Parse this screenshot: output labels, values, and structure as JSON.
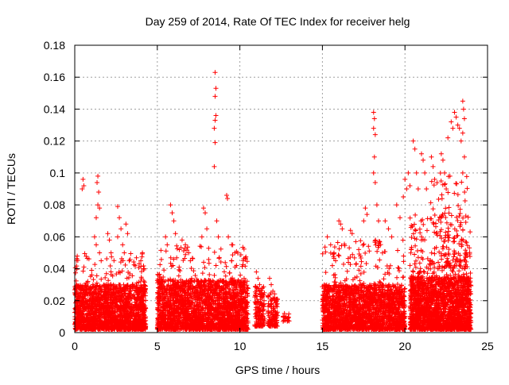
{
  "chart_data": {
    "type": "scatter",
    "title": "Day 259 of 2014, Rate Of TEC Index for receiver helg",
    "xlabel": "GPS time / hours",
    "ylabel": "ROTI / TECUs",
    "xlim": [
      0,
      25
    ],
    "ylim": [
      0,
      0.18
    ],
    "x_ticks": [
      0,
      5,
      10,
      15,
      20,
      25
    ],
    "x_tick_labels": [
      "0",
      "5",
      "10",
      "15",
      "20",
      "25"
    ],
    "y_ticks": [
      0,
      0.02,
      0.04,
      0.06,
      0.08,
      0.1,
      0.12,
      0.14,
      0.16,
      0.18
    ],
    "y_tick_labels": [
      "0",
      "0.02",
      "0.04",
      "0.06",
      "0.08",
      "0.1",
      "0.12",
      "0.14",
      "0.16",
      "0.18"
    ],
    "grid": true,
    "marker": "+",
    "color": "#ff0000",
    "series": [
      {
        "name": "ROTI",
        "points": [
          [
            0.5,
            0.096
          ],
          [
            0.55,
            0.092
          ],
          [
            0.45,
            0.09
          ],
          [
            1.4,
            0.098
          ],
          [
            1.35,
            0.094
          ],
          [
            1.45,
            0.088
          ],
          [
            1.4,
            0.08
          ],
          [
            1.5,
            0.078
          ],
          [
            1.3,
            0.072
          ],
          [
            1.2,
            0.06
          ],
          [
            1.3,
            0.055
          ],
          [
            1.5,
            0.05
          ],
          [
            1.6,
            0.045
          ],
          [
            2.0,
            0.062
          ],
          [
            2.1,
            0.058
          ],
          [
            2.2,
            0.05
          ],
          [
            2.6,
            0.079
          ],
          [
            2.7,
            0.072
          ],
          [
            2.8,
            0.065
          ],
          [
            2.6,
            0.06
          ],
          [
            2.9,
            0.055
          ],
          [
            3.1,
            0.068
          ],
          [
            3.2,
            0.062
          ],
          [
            3.0,
            0.05
          ],
          [
            3.3,
            0.045
          ],
          [
            4.1,
            0.05
          ],
          [
            4.0,
            0.045
          ],
          [
            4.2,
            0.04
          ],
          [
            5.5,
            0.06
          ],
          [
            5.6,
            0.055
          ],
          [
            5.8,
            0.08
          ],
          [
            5.9,
            0.075
          ],
          [
            6.0,
            0.07
          ],
          [
            6.1,
            0.062
          ],
          [
            6.5,
            0.058
          ],
          [
            6.7,
            0.055
          ],
          [
            6.9,
            0.05
          ],
          [
            7.0,
            0.045
          ],
          [
            7.8,
            0.078
          ],
          [
            7.9,
            0.075
          ],
          [
            8.0,
            0.065
          ],
          [
            7.7,
            0.06
          ],
          [
            8.5,
            0.163
          ],
          [
            8.55,
            0.153
          ],
          [
            8.5,
            0.148
          ],
          [
            8.55,
            0.136
          ],
          [
            8.5,
            0.133
          ],
          [
            8.45,
            0.128
          ],
          [
            8.5,
            0.119
          ],
          [
            8.45,
            0.104
          ],
          [
            8.6,
            0.07
          ],
          [
            8.7,
            0.06
          ],
          [
            9.2,
            0.086
          ],
          [
            9.25,
            0.084
          ],
          [
            9.3,
            0.06
          ],
          [
            9.5,
            0.055
          ],
          [
            9.7,
            0.05
          ],
          [
            10.2,
            0.045
          ],
          [
            11.0,
            0.038
          ],
          [
            11.1,
            0.034
          ],
          [
            11.2,
            0.03
          ],
          [
            11.8,
            0.034
          ],
          [
            11.9,
            0.03
          ],
          [
            12.0,
            0.026
          ],
          [
            12.7,
            0.012
          ],
          [
            12.8,
            0.01
          ],
          [
            12.9,
            0.009
          ],
          [
            15.3,
            0.06
          ],
          [
            15.5,
            0.055
          ],
          [
            15.7,
            0.05
          ],
          [
            15.8,
            0.045
          ],
          [
            16.0,
            0.07
          ],
          [
            16.1,
            0.068
          ],
          [
            16.2,
            0.065
          ],
          [
            16.7,
            0.064
          ],
          [
            16.8,
            0.062
          ],
          [
            17.2,
            0.052
          ],
          [
            17.3,
            0.048
          ],
          [
            17.6,
            0.078
          ],
          [
            17.7,
            0.074
          ],
          [
            17.5,
            0.07
          ],
          [
            18.1,
            0.138
          ],
          [
            18.15,
            0.134
          ],
          [
            18.1,
            0.128
          ],
          [
            18.2,
            0.124
          ],
          [
            18.15,
            0.11
          ],
          [
            18.1,
            0.1
          ],
          [
            18.2,
            0.094
          ],
          [
            18.3,
            0.08
          ],
          [
            18.4,
            0.07
          ],
          [
            18.8,
            0.07
          ],
          [
            19.0,
            0.065
          ],
          [
            19.2,
            0.06
          ],
          [
            19.5,
            0.08
          ],
          [
            19.7,
            0.072
          ],
          [
            19.9,
            0.085
          ],
          [
            20.0,
            0.096
          ],
          [
            20.1,
            0.09
          ],
          [
            20.2,
            0.1
          ],
          [
            20.3,
            0.092
          ],
          [
            20.5,
            0.12
          ],
          [
            20.6,
            0.115
          ],
          [
            20.7,
            0.1
          ],
          [
            20.8,
            0.09
          ],
          [
            21.0,
            0.112
          ],
          [
            21.1,
            0.108
          ],
          [
            21.2,
            0.1
          ],
          [
            21.3,
            0.09
          ],
          [
            21.6,
            0.11
          ],
          [
            21.7,
            0.104
          ],
          [
            21.8,
            0.096
          ],
          [
            22.2,
            0.112
          ],
          [
            22.3,
            0.108
          ],
          [
            22.4,
            0.1
          ],
          [
            22.5,
            0.09
          ],
          [
            22.6,
            0.122
          ],
          [
            22.8,
            0.132
          ],
          [
            22.9,
            0.128
          ],
          [
            23.0,
            0.138
          ],
          [
            23.1,
            0.135
          ],
          [
            23.2,
            0.13
          ],
          [
            23.3,
            0.128
          ],
          [
            23.5,
            0.145
          ],
          [
            23.55,
            0.14
          ],
          [
            23.6,
            0.134
          ],
          [
            23.5,
            0.125
          ],
          [
            23.4,
            0.12
          ],
          [
            23.6,
            0.11
          ],
          [
            23.5,
            0.1
          ]
        ],
        "density": [
          {
            "x": [
              0,
              4.3
            ],
            "y": [
              0.002,
              0.03
            ],
            "n": 1700
          },
          {
            "x": [
              0,
              4.3
            ],
            "y": [
              0.015,
              0.05
            ],
            "n": 180
          },
          {
            "x": [
              5,
              10.5
            ],
            "y": [
              0.002,
              0.033
            ],
            "n": 2100
          },
          {
            "x": [
              5,
              10.5
            ],
            "y": [
              0.015,
              0.055
            ],
            "n": 240
          },
          {
            "x": [
              10.9,
              11.5
            ],
            "y": [
              0.004,
              0.03
            ],
            "n": 150
          },
          {
            "x": [
              11.7,
              12.3
            ],
            "y": [
              0.004,
              0.025
            ],
            "n": 120
          },
          {
            "x": [
              12.6,
              13.0
            ],
            "y": [
              0.007,
              0.012
            ],
            "n": 15
          },
          {
            "x": [
              15,
              20.0
            ],
            "y": [
              0.002,
              0.03
            ],
            "n": 1900
          },
          {
            "x": [
              15,
              20.0
            ],
            "y": [
              0.015,
              0.058
            ],
            "n": 220
          },
          {
            "x": [
              20.3,
              24
            ],
            "y": [
              0.002,
              0.035
            ],
            "n": 1800
          },
          {
            "x": [
              20.3,
              24
            ],
            "y": [
              0.02,
              0.075
            ],
            "n": 300
          },
          {
            "x": [
              21.5,
              24
            ],
            "y": [
              0.04,
              0.1
            ],
            "n": 90
          }
        ]
      }
    ]
  }
}
